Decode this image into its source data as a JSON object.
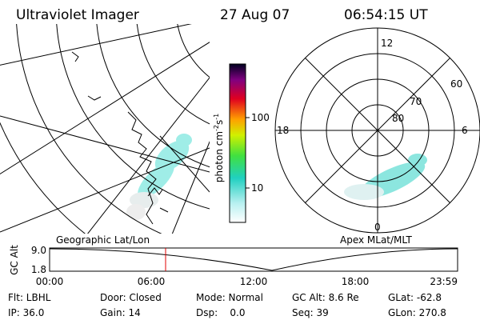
{
  "header": {
    "instrument": "Ultraviolet Imager",
    "date": "27 Aug 07",
    "time": "06:54:15 UT"
  },
  "colorbar": {
    "unit": [
      "photon cm",
      "-2",
      "s",
      "-1"
    ],
    "ticks": [
      "100",
      "10"
    ]
  },
  "polar": {
    "mlt_labels": [
      "12",
      "18",
      "6",
      "0"
    ],
    "mlat_labels": [
      "60",
      "70",
      "80"
    ]
  },
  "panels": {
    "left_caption": "Geographic Lat/Lon",
    "right_caption": "Apex MLat/MLT"
  },
  "timeline": {
    "ylabel": "GC Alt",
    "yticks": [
      "9.0",
      "1.8"
    ],
    "xticks": [
      "00:00",
      "06:00",
      "12:00",
      "18:00",
      "23:59"
    ]
  },
  "info": {
    "rows": [
      [
        "Flt: LBHL",
        "Door: Closed",
        "Mode: Normal",
        "GC Alt: 8.6 Re",
        "GLat: -62.8"
      ],
      [
        "IP: 36.0",
        "Gain: 14",
        "Dsp:    0.0",
        "Seq: 39",
        "GLon: 270.8"
      ]
    ]
  }
}
